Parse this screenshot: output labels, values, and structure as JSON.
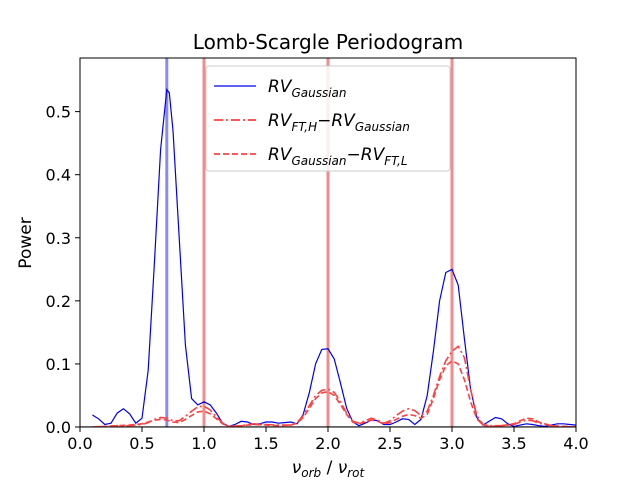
{
  "chart_data": {
    "type": "line",
    "title": "Lomb-Scargle Periodogram",
    "xlabel": {
      "main": "ν",
      "main_sub": "orb",
      "sep": " / ",
      "den": "ν",
      "den_sub": "rot"
    },
    "ylabel": "Power",
    "xlim": [
      0,
      4
    ],
    "ylim": [
      0,
      0.585
    ],
    "xticks": [
      0,
      0.5,
      1.0,
      1.5,
      2.0,
      2.5,
      3.0,
      3.5,
      4.0
    ],
    "xtick_labels": [
      "0.0",
      "0.5",
      "1.0",
      "1.5",
      "2.0",
      "2.5",
      "3.0",
      "3.5",
      "4.0"
    ],
    "yticks": [
      0,
      0.1,
      0.2,
      0.3,
      0.4,
      0.5
    ],
    "ytick_labels": [
      "0.0",
      "0.1",
      "0.2",
      "0.3",
      "0.4",
      "0.5"
    ],
    "grid": false,
    "legend_position": "top-center",
    "vlines": [
      {
        "x": 0.7,
        "color": "#7b7ef5"
      },
      {
        "x": 1.0,
        "color": "#f08080"
      },
      {
        "x": 2.0,
        "color": "#f08080"
      },
      {
        "x": 3.0,
        "color": "#f08080"
      }
    ],
    "series": [
      {
        "name": {
          "base": "RV",
          "sub": "Gaussian",
          "base2": "",
          "sub2": ""
        },
        "color": "#0000ee",
        "style": "solid",
        "points": [
          [
            0.1,
            0.019
          ],
          [
            0.15,
            0.013
          ],
          [
            0.2,
            0.004
          ],
          [
            0.25,
            0.006
          ],
          [
            0.3,
            0.022
          ],
          [
            0.35,
            0.029
          ],
          [
            0.4,
            0.021
          ],
          [
            0.45,
            0.006
          ],
          [
            0.5,
            0.014
          ],
          [
            0.55,
            0.09
          ],
          [
            0.6,
            0.26
          ],
          [
            0.65,
            0.44
          ],
          [
            0.7,
            0.535
          ],
          [
            0.72,
            0.53
          ],
          [
            0.75,
            0.47
          ],
          [
            0.8,
            0.3
          ],
          [
            0.85,
            0.13
          ],
          [
            0.9,
            0.045
          ],
          [
            0.95,
            0.035
          ],
          [
            1.0,
            0.04
          ],
          [
            1.05,
            0.035
          ],
          [
            1.1,
            0.022
          ],
          [
            1.15,
            0.006
          ],
          [
            1.2,
            0.001
          ],
          [
            1.25,
            0.004
          ],
          [
            1.3,
            0.009
          ],
          [
            1.35,
            0.008
          ],
          [
            1.4,
            0.004
          ],
          [
            1.45,
            0.005
          ],
          [
            1.5,
            0.008
          ],
          [
            1.55,
            0.008
          ],
          [
            1.6,
            0.006
          ],
          [
            1.65,
            0.007
          ],
          [
            1.7,
            0.008
          ],
          [
            1.75,
            0.005
          ],
          [
            1.8,
            0.02
          ],
          [
            1.85,
            0.055
          ],
          [
            1.9,
            0.1
          ],
          [
            1.95,
            0.123
          ],
          [
            2.0,
            0.124
          ],
          [
            2.05,
            0.108
          ],
          [
            2.1,
            0.07
          ],
          [
            2.15,
            0.03
          ],
          [
            2.2,
            0.008
          ],
          [
            2.25,
            0.002
          ],
          [
            2.3,
            0.006
          ],
          [
            2.35,
            0.011
          ],
          [
            2.4,
            0.01
          ],
          [
            2.45,
            0.004
          ],
          [
            2.5,
            0.004
          ],
          [
            2.55,
            0.008
          ],
          [
            2.6,
            0.013
          ],
          [
            2.65,
            0.012
          ],
          [
            2.7,
            0.004
          ],
          [
            2.75,
            0.012
          ],
          [
            2.8,
            0.05
          ],
          [
            2.85,
            0.12
          ],
          [
            2.9,
            0.2
          ],
          [
            2.95,
            0.245
          ],
          [
            3.0,
            0.25
          ],
          [
            3.05,
            0.225
          ],
          [
            3.1,
            0.14
          ],
          [
            3.15,
            0.06
          ],
          [
            3.2,
            0.015
          ],
          [
            3.25,
            0.003
          ],
          [
            3.3,
            0.009
          ],
          [
            3.35,
            0.015
          ],
          [
            3.4,
            0.013
          ],
          [
            3.45,
            0.005
          ],
          [
            3.5,
            0.001
          ],
          [
            3.55,
            0.003
          ],
          [
            3.6,
            0.005
          ],
          [
            3.65,
            0.004
          ],
          [
            3.7,
            0.002
          ],
          [
            3.75,
            0.001
          ],
          [
            3.8,
            0.003
          ],
          [
            3.85,
            0.005
          ],
          [
            3.9,
            0.005
          ],
          [
            3.95,
            0.004
          ],
          [
            4.0,
            0.003
          ]
        ]
      },
      {
        "name": {
          "base": "RV",
          "sub": "FT,H",
          "base2": "RV",
          "sub2": "Gaussian"
        },
        "color": "#ff4040",
        "style": "dashdot",
        "points": [
          [
            0.1,
            0.0
          ],
          [
            0.2,
            0.001
          ],
          [
            0.3,
            0.002
          ],
          [
            0.4,
            0.002
          ],
          [
            0.5,
            0.004
          ],
          [
            0.55,
            0.007
          ],
          [
            0.6,
            0.012
          ],
          [
            0.65,
            0.015
          ],
          [
            0.7,
            0.014
          ],
          [
            0.75,
            0.01
          ],
          [
            0.8,
            0.01
          ],
          [
            0.85,
            0.017
          ],
          [
            0.9,
            0.025
          ],
          [
            0.95,
            0.032
          ],
          [
            1.0,
            0.033
          ],
          [
            1.05,
            0.027
          ],
          [
            1.1,
            0.016
          ],
          [
            1.15,
            0.006
          ],
          [
            1.2,
            0.001
          ],
          [
            1.3,
            0.002
          ],
          [
            1.4,
            0.005
          ],
          [
            1.5,
            0.004
          ],
          [
            1.6,
            0.003
          ],
          [
            1.7,
            0.003
          ],
          [
            1.75,
            0.007
          ],
          [
            1.8,
            0.018
          ],
          [
            1.85,
            0.034
          ],
          [
            1.9,
            0.05
          ],
          [
            1.95,
            0.058
          ],
          [
            2.0,
            0.06
          ],
          [
            2.05,
            0.055
          ],
          [
            2.1,
            0.04
          ],
          [
            2.15,
            0.022
          ],
          [
            2.2,
            0.009
          ],
          [
            2.25,
            0.006
          ],
          [
            2.3,
            0.01
          ],
          [
            2.35,
            0.014
          ],
          [
            2.4,
            0.011
          ],
          [
            2.45,
            0.006
          ],
          [
            2.5,
            0.01
          ],
          [
            2.55,
            0.018
          ],
          [
            2.6,
            0.025
          ],
          [
            2.65,
            0.029
          ],
          [
            2.7,
            0.026
          ],
          [
            2.75,
            0.018
          ],
          [
            2.8,
            0.025
          ],
          [
            2.85,
            0.05
          ],
          [
            2.9,
            0.08
          ],
          [
            2.95,
            0.105
          ],
          [
            3.0,
            0.12
          ],
          [
            3.05,
            0.128
          ],
          [
            3.1,
            0.11
          ],
          [
            3.15,
            0.06
          ],
          [
            3.2,
            0.018
          ],
          [
            3.25,
            0.004
          ],
          [
            3.3,
            0.002
          ],
          [
            3.4,
            0.002
          ],
          [
            3.5,
            0.004
          ],
          [
            3.55,
            0.008
          ],
          [
            3.6,
            0.011
          ],
          [
            3.65,
            0.01
          ],
          [
            3.7,
            0.006
          ],
          [
            3.8,
            0.002
          ],
          [
            3.9,
            0.001
          ],
          [
            4.0,
            0.0
          ]
        ]
      },
      {
        "name": {
          "base": "RV",
          "sub": "Gaussian",
          "base2": "RV",
          "sub2": "FT,L"
        },
        "color": "#ff4040",
        "style": "dashed",
        "points": [
          [
            0.1,
            0.0
          ],
          [
            0.2,
            0.001
          ],
          [
            0.3,
            0.002
          ],
          [
            0.4,
            0.003
          ],
          [
            0.5,
            0.005
          ],
          [
            0.55,
            0.008
          ],
          [
            0.6,
            0.011
          ],
          [
            0.65,
            0.012
          ],
          [
            0.7,
            0.011
          ],
          [
            0.75,
            0.008
          ],
          [
            0.8,
            0.007
          ],
          [
            0.85,
            0.012
          ],
          [
            0.9,
            0.018
          ],
          [
            0.95,
            0.024
          ],
          [
            1.0,
            0.025
          ],
          [
            1.05,
            0.021
          ],
          [
            1.1,
            0.013
          ],
          [
            1.15,
            0.005
          ],
          [
            1.2,
            0.001
          ],
          [
            1.3,
            0.002
          ],
          [
            1.4,
            0.004
          ],
          [
            1.5,
            0.003
          ],
          [
            1.6,
            0.002
          ],
          [
            1.7,
            0.003
          ],
          [
            1.75,
            0.006
          ],
          [
            1.8,
            0.015
          ],
          [
            1.85,
            0.03
          ],
          [
            1.9,
            0.045
          ],
          [
            1.95,
            0.054
          ],
          [
            2.0,
            0.056
          ],
          [
            2.05,
            0.05
          ],
          [
            2.1,
            0.036
          ],
          [
            2.15,
            0.02
          ],
          [
            2.2,
            0.008
          ],
          [
            2.25,
            0.005
          ],
          [
            2.3,
            0.008
          ],
          [
            2.35,
            0.011
          ],
          [
            2.4,
            0.009
          ],
          [
            2.45,
            0.005
          ],
          [
            2.5,
            0.007
          ],
          [
            2.55,
            0.012
          ],
          [
            2.6,
            0.017
          ],
          [
            2.65,
            0.02
          ],
          [
            2.7,
            0.018
          ],
          [
            2.75,
            0.014
          ],
          [
            2.8,
            0.02
          ],
          [
            2.85,
            0.045
          ],
          [
            2.9,
            0.075
          ],
          [
            2.95,
            0.097
          ],
          [
            3.0,
            0.105
          ],
          [
            3.05,
            0.1
          ],
          [
            3.1,
            0.075
          ],
          [
            3.15,
            0.04
          ],
          [
            3.2,
            0.013
          ],
          [
            3.25,
            0.003
          ],
          [
            3.3,
            0.001
          ],
          [
            3.4,
            0.002
          ],
          [
            3.5,
            0.005
          ],
          [
            3.55,
            0.01
          ],
          [
            3.6,
            0.014
          ],
          [
            3.65,
            0.013
          ],
          [
            3.7,
            0.008
          ],
          [
            3.8,
            0.002
          ],
          [
            3.9,
            0.001
          ],
          [
            4.0,
            0.0
          ]
        ]
      }
    ]
  }
}
